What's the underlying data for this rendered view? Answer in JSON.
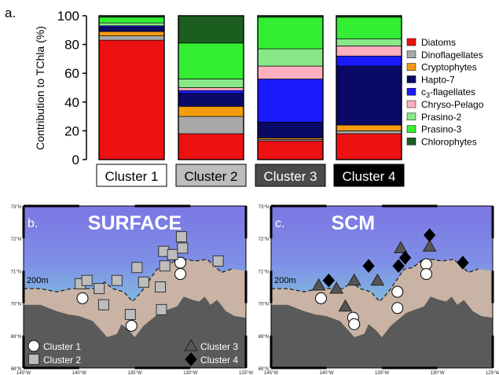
{
  "figure": {
    "panel_a_label": "a.",
    "panel_b_label": "b.",
    "panel_c_label": "c."
  },
  "chart_data": {
    "type": "bar",
    "stacked": true,
    "ylabel": "Contribution to TChla (%)",
    "ylim": [
      0,
      100
    ],
    "yticks": [
      0,
      20,
      40,
      60,
      80,
      100
    ],
    "categories": [
      "Cluster 1",
      "Cluster 2",
      "Cluster 3",
      "Cluster 4"
    ],
    "category_box_fill": [
      "#ffffff",
      "#bdbdbd",
      "#4a4a4a",
      "#000000"
    ],
    "category_text_color": [
      "#000000",
      "#000000",
      "#ffffff",
      "#ffffff"
    ],
    "legend_position": "right",
    "series": [
      {
        "name": "Diatoms",
        "color": "#ee1111",
        "values": [
          83,
          18,
          13,
          18
        ]
      },
      {
        "name": "Dinoflagellates",
        "color": "#a8a8a8",
        "values": [
          3,
          12,
          1,
          2
        ]
      },
      {
        "name": "Cryptophytes",
        "color": "#f39c12",
        "values": [
          3,
          7,
          1,
          4
        ]
      },
      {
        "name": "Hapto-7",
        "color": "#0a0a66",
        "values": [
          3,
          9,
          11,
          41
        ]
      },
      {
        "name": "c3-flagellates",
        "color": "#1a1aff",
        "values": [
          1,
          2,
          30,
          7
        ]
      },
      {
        "name": "Chryso-Pelago",
        "color": "#ffb0c0",
        "values": [
          0,
          2,
          9,
          7
        ]
      },
      {
        "name": "Prasino-2",
        "color": "#88e888",
        "values": [
          2,
          6,
          12,
          5
        ]
      },
      {
        "name": "Prasino-3",
        "color": "#33ee33",
        "values": [
          4,
          25,
          22,
          15
        ]
      },
      {
        "name": "Chlorophytes",
        "color": "#1b5e20",
        "values": [
          1,
          19,
          1,
          1
        ]
      }
    ]
  },
  "maps": [
    {
      "label": "b.",
      "title": "SURFACE",
      "isobath_label": "200m",
      "lat_labels": [
        "73°N",
        "72°N",
        "71°N",
        "70°N",
        "69°N",
        "68°N"
      ],
      "lon_labels": [
        "145°W",
        "140°W",
        "135°W",
        "130°W",
        "125°W"
      ],
      "legend": [
        {
          "shape": "circle",
          "label": "Cluster 1"
        },
        {
          "shape": "square",
          "label": "Cluster 2"
        },
        {
          "shape": "triangle",
          "label": "Cluster 3"
        },
        {
          "shape": "diamond",
          "label": "Cluster 4"
        }
      ],
      "stations": [
        {
          "cluster": "Cluster 1",
          "lon": -139.7,
          "lat": 70.15
        },
        {
          "cluster": "Cluster 1",
          "lon": -135.3,
          "lat": 69.3
        },
        {
          "cluster": "Cluster 1",
          "lon": -130.9,
          "lat": 71.25
        },
        {
          "cluster": "Cluster 1",
          "lon": -130.9,
          "lat": 70.9
        },
        {
          "cluster": "Cluster 2",
          "lon": -139.9,
          "lat": 70.6
        },
        {
          "cluster": "Cluster 2",
          "lon": -139.3,
          "lat": 70.7
        },
        {
          "cluster": "Cluster 2",
          "lon": -138.2,
          "lat": 70.45
        },
        {
          "cluster": "Cluster 2",
          "lon": -137.8,
          "lat": 69.95
        },
        {
          "cluster": "Cluster 2",
          "lon": -136.6,
          "lat": 70.7
        },
        {
          "cluster": "Cluster 2",
          "lon": -135.4,
          "lat": 69.65
        },
        {
          "cluster": "Cluster 2",
          "lon": -134.8,
          "lat": 71.1
        },
        {
          "cluster": "Cluster 2",
          "lon": -134.2,
          "lat": 70.65
        },
        {
          "cluster": "Cluster 2",
          "lon": -132.7,
          "lat": 70.5
        },
        {
          "cluster": "Cluster 2",
          "lon": -132.6,
          "lat": 69.8
        },
        {
          "cluster": "Cluster 2",
          "lon": -132.4,
          "lat": 71.6
        },
        {
          "cluster": "Cluster 2",
          "lon": -132.3,
          "lat": 71.15
        },
        {
          "cluster": "Cluster 2",
          "lon": -131.6,
          "lat": 71.5
        },
        {
          "cluster": "Cluster 2",
          "lon": -130.8,
          "lat": 72.05
        },
        {
          "cluster": "Cluster 2",
          "lon": -130.7,
          "lat": 71.7
        },
        {
          "cluster": "Cluster 2",
          "lon": -127.5,
          "lat": 71.3
        }
      ]
    },
    {
      "label": "c.",
      "title": "SCM",
      "isobath_label": "200m",
      "lat_labels": [
        "73°N",
        "72°N",
        "71°N",
        "70°N",
        "69°N",
        "68°N"
      ],
      "lon_labels": [
        "145°W",
        "140°W",
        "135°W",
        "130°W",
        "125°W"
      ],
      "stations": [
        {
          "cluster": "Cluster 1",
          "lon": -140.5,
          "lat": 70.15
        },
        {
          "cluster": "Cluster 1",
          "lon": -137.6,
          "lat": 69.55
        },
        {
          "cluster": "Cluster 1",
          "lon": -137.5,
          "lat": 69.35
        },
        {
          "cluster": "Cluster 1",
          "lon": -133.6,
          "lat": 70.35
        },
        {
          "cluster": "Cluster 1",
          "lon": -133.6,
          "lat": 69.85
        },
        {
          "cluster": "Cluster 1",
          "lon": -131.0,
          "lat": 71.2
        },
        {
          "cluster": "Cluster 1",
          "lon": -131.0,
          "lat": 70.9
        },
        {
          "cluster": "Cluster 3",
          "lon": -140.7,
          "lat": 70.55
        },
        {
          "cluster": "Cluster 3",
          "lon": -139.1,
          "lat": 70.45
        },
        {
          "cluster": "Cluster 3",
          "lon": -138.3,
          "lat": 69.9
        },
        {
          "cluster": "Cluster 3",
          "lon": -137.5,
          "lat": 70.7
        },
        {
          "cluster": "Cluster 3",
          "lon": -135.4,
          "lat": 70.7
        },
        {
          "cluster": "Cluster 3",
          "lon": -133.3,
          "lat": 71.7
        },
        {
          "cluster": "Cluster 3",
          "lon": -130.7,
          "lat": 71.75
        },
        {
          "cluster": "Cluster 4",
          "lon": -139.8,
          "lat": 70.7
        },
        {
          "cluster": "Cluster 4",
          "lon": -136.2,
          "lat": 71.15
        },
        {
          "cluster": "Cluster 4",
          "lon": -133.5,
          "lat": 71.15
        },
        {
          "cluster": "Cluster 4",
          "lon": -132.9,
          "lat": 71.4
        },
        {
          "cluster": "Cluster 4",
          "lon": -130.7,
          "lat": 72.1
        },
        {
          "cluster": "Cluster 4",
          "lon": -127.7,
          "lat": 71.25
        }
      ]
    }
  ]
}
